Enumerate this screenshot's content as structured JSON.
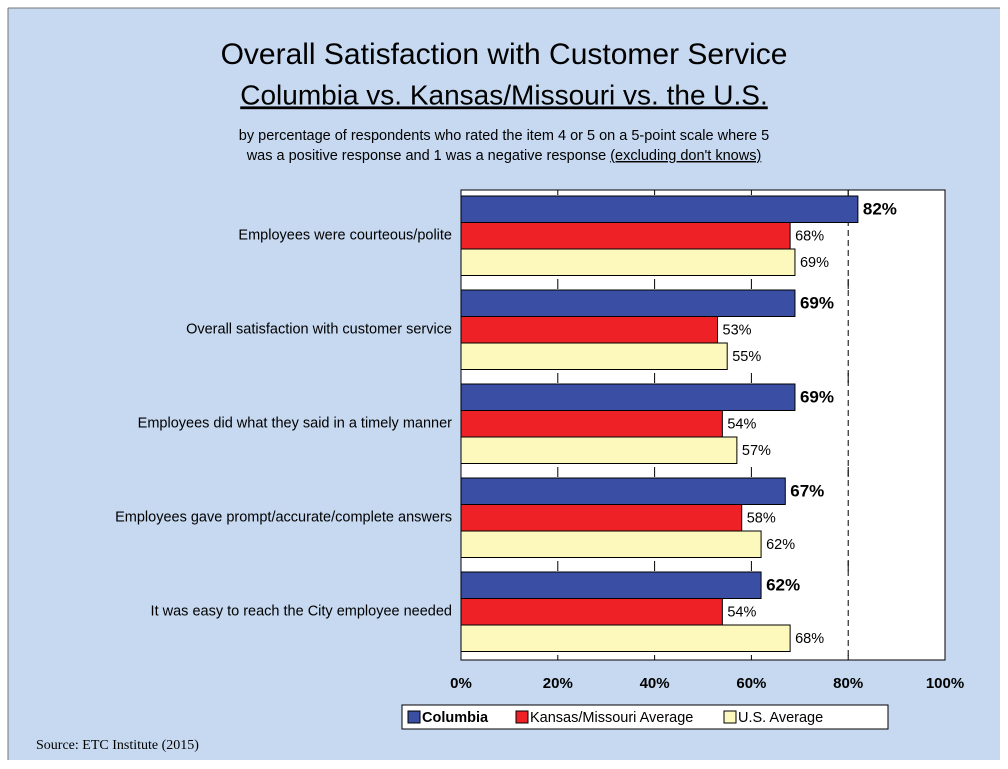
{
  "chart_data": {
    "type": "bar",
    "orientation": "horizontal",
    "title": [
      "Overall Satisfaction with Customer Service",
      "Columbia vs. Kansas/Missouri vs. the U.S."
    ],
    "subtitle": [
      "by percentage of respondents who rated the item 4 or 5 on a 5-point scale where 5",
      "was a positive response and 1 was a negative response"
    ],
    "subtitle_note": "(excluding don't knows)",
    "categories": [
      "Employees were courteous/polite",
      "Overall satisfaction with customer service",
      "Employees did what they said in a timely manner",
      "Employees gave prompt/accurate/complete answers",
      "It was easy to reach the City employee needed"
    ],
    "series": [
      {
        "name": "Columbia",
        "color": "#3a4fa3",
        "values": [
          82,
          69,
          69,
          67,
          62
        ],
        "value_labels": [
          "82%",
          "69%",
          "69%",
          "67%",
          "62%"
        ]
      },
      {
        "name": "Kansas/Missouri Average",
        "color": "#ee2126",
        "values": [
          68,
          53,
          54,
          58,
          54
        ],
        "value_labels": [
          "68%",
          "53%",
          "54%",
          "58%",
          "54%"
        ]
      },
      {
        "name": "U.S. Average",
        "color": "#fdf9bc",
        "values": [
          69,
          55,
          57,
          62,
          68
        ],
        "value_labels": [
          "69%",
          "55%",
          "57%",
          "62%",
          "68%"
        ]
      }
    ],
    "xlim": [
      0,
      100
    ],
    "xticks": [
      {
        "value": 0,
        "label": "0%"
      },
      {
        "value": 20,
        "label": "20%"
      },
      {
        "value": 40,
        "label": "40%"
      },
      {
        "value": 60,
        "label": "60%"
      },
      {
        "value": 80,
        "label": "80%"
      },
      {
        "value": 100,
        "label": "100%"
      }
    ],
    "reference_line": 80,
    "legend": "bottom",
    "source": "Source:  ETC Institute (2015)"
  }
}
